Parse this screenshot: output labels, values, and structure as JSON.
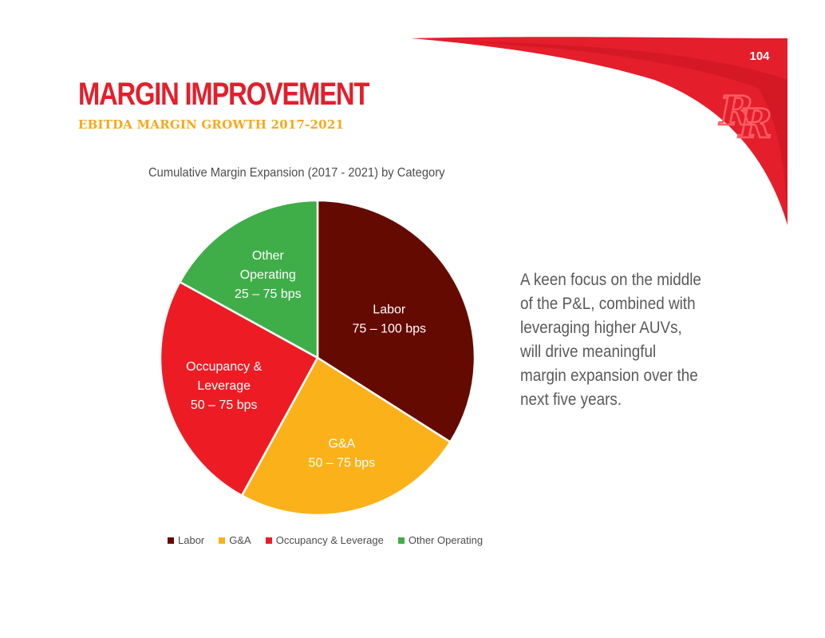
{
  "header": {
    "page_number": "104",
    "title": "MARGIN IMPROVEMENT",
    "subtitle": "EBITDA MARGIN GROWTH 2017-2021",
    "logo_icon": "rr-logo-icon"
  },
  "colors": {
    "brand_red": "#e41e2b",
    "accent_yellow": "#f7a81b",
    "labor": "#640a00",
    "ga": "#fbb21a",
    "occupancy": "#ed1c24",
    "other": "#3fae49"
  },
  "chart_data": {
    "type": "pie",
    "title": "Cumulative Margin Expansion  (2017 - 2021) by Category",
    "series": [
      {
        "name": "Labor",
        "value": 34,
        "label_lines": [
          "Labor",
          "75 – 100 bps"
        ],
        "color": "#640a00"
      },
      {
        "name": "G&A",
        "value": 24,
        "label_lines": [
          "G&A",
          "50 – 75 bps"
        ],
        "color": "#fbb21a"
      },
      {
        "name": "Occupancy & Leverage",
        "value": 25,
        "label_lines": [
          "Occupancy &",
          "Leverage",
          "50 – 75 bps"
        ],
        "color": "#ed1c24"
      },
      {
        "name": "Other Operating",
        "value": 17,
        "label_lines": [
          "Other",
          "Operating",
          "25 – 75 bps"
        ],
        "color": "#3fae49"
      }
    ],
    "legend": [
      "Labor",
      "G&A",
      "Occupancy & Leverage",
      "Other Operating"
    ],
    "legend_position": "bottom"
  },
  "body_text": {
    "lines": [
      "A keen focus on the middle",
      "of the P&L, combined with",
      "leveraging higher AUVs,",
      "will drive meaningful",
      "margin expansion over the",
      "next five years."
    ]
  }
}
